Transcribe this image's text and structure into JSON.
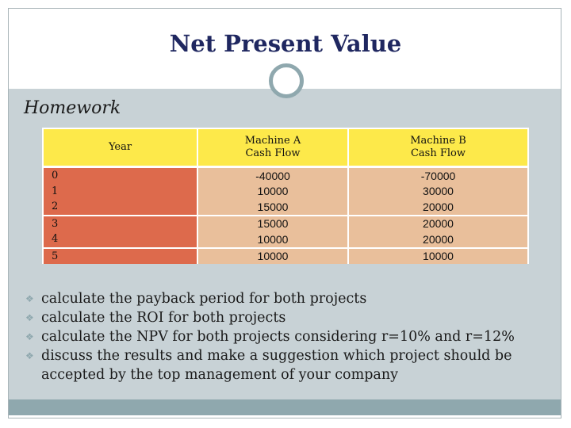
{
  "slide": {
    "title": "Net Present Value",
    "subtitle": "Homework"
  },
  "table": {
    "headers": [
      "Year",
      "Machine A\nCash Flow",
      "Machine B\nCash Flow"
    ],
    "rows": [
      [
        "0",
        "-40000",
        "-70000"
      ],
      [
        "1",
        "10000",
        "30000"
      ],
      [
        "2",
        "15000",
        "20000"
      ],
      [
        "3",
        "15000",
        "20000"
      ],
      [
        "4",
        "10000",
        "20000"
      ],
      [
        "5",
        "10000",
        "10000"
      ]
    ]
  },
  "bullets": [
    "calculate the payback period for both projects",
    "calculate the ROI for both projects",
    "calculate the NPV for both projects considering r=10% and r=12%",
    "discuss the results and make a suggestion which project should be accepted by the top management of your company"
  ],
  "colors": {
    "title": "#1f2760",
    "body_background": "#c8d2d6",
    "accent": "#8fa8ae",
    "header_fill": "#fde94a",
    "year_fill": "#dd6a4c",
    "value_fill": "#e9bf9b"
  }
}
